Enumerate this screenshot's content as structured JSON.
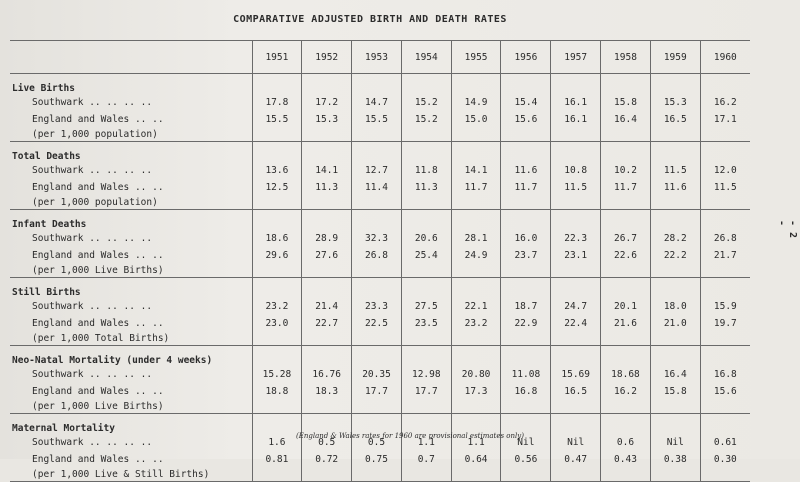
{
  "title": "COMPARATIVE ADJUSTED BIRTH AND DEATH RATES",
  "years": [
    "1951",
    "1952",
    "1953",
    "1954",
    "1955",
    "1956",
    "1957",
    "1958",
    "1959",
    "1960"
  ],
  "groups": [
    {
      "heading": "Live Births",
      "rows": [
        {
          "label": "Southwark .. .. .. ..",
          "values": [
            "17.8",
            "17.2",
            "14.7",
            "15.2",
            "14.9",
            "15.4",
            "16.1",
            "15.8",
            "15.3",
            "16.2"
          ]
        },
        {
          "label": "England and Wales .. ..",
          "values": [
            "15.5",
            "15.3",
            "15.5",
            "15.2",
            "15.0",
            "15.6",
            "16.1",
            "16.4",
            "16.5",
            "17.1"
          ]
        }
      ],
      "note": "(per 1,000 population)"
    },
    {
      "heading": "Total Deaths",
      "rows": [
        {
          "label": "Southwark .. .. .. ..",
          "values": [
            "13.6",
            "14.1",
            "12.7",
            "11.8",
            "14.1",
            "11.6",
            "10.8",
            "10.2",
            "11.5",
            "12.0"
          ]
        },
        {
          "label": "England and Wales .. ..",
          "values": [
            "12.5",
            "11.3",
            "11.4",
            "11.3",
            "11.7",
            "11.7",
            "11.5",
            "11.7",
            "11.6",
            "11.5"
          ]
        }
      ],
      "note": "(per 1,000 population)"
    },
    {
      "heading": "Infant Deaths",
      "rows": [
        {
          "label": "Southwark .. .. .. ..",
          "values": [
            "18.6",
            "28.9",
            "32.3",
            "20.6",
            "28.1",
            "16.0",
            "22.3",
            "26.7",
            "28.2",
            "26.8"
          ]
        },
        {
          "label": "England and Wales .. ..",
          "values": [
            "29.6",
            "27.6",
            "26.8",
            "25.4",
            "24.9",
            "23.7",
            "23.1",
            "22.6",
            "22.2",
            "21.7"
          ]
        }
      ],
      "note": "(per 1,000 Live Births)"
    },
    {
      "heading": "Still Births",
      "rows": [
        {
          "label": "Southwark .. .. .. ..",
          "values": [
            "23.2",
            "21.4",
            "23.3",
            "27.5",
            "22.1",
            "18.7",
            "24.7",
            "20.1",
            "18.0",
            "15.9"
          ]
        },
        {
          "label": "England and Wales .. ..",
          "values": [
            "23.0",
            "22.7",
            "22.5",
            "23.5",
            "23.2",
            "22.9",
            "22.4",
            "21.6",
            "21.0",
            "19.7"
          ]
        }
      ],
      "note": "(per 1,000 Total Births)"
    },
    {
      "heading": "Neo-Natal Mortality (under 4 weeks)",
      "rows": [
        {
          "label": "Southwark .. .. .. ..",
          "values": [
            "15.28",
            "16.76",
            "20.35",
            "12.98",
            "20.80",
            "11.08",
            "15.69",
            "18.68",
            "16.4",
            "16.8"
          ]
        },
        {
          "label": "England and Wales .. ..",
          "values": [
            "18.8",
            "18.3",
            "17.7",
            "17.7",
            "17.3",
            "16.8",
            "16.5",
            "16.2",
            "15.8",
            "15.6"
          ]
        }
      ],
      "note": "(per 1,000 Live Births)"
    },
    {
      "heading": "Maternal Mortality",
      "rows": [
        {
          "label": "Southwark .. .. .. ..",
          "values": [
            "1.6",
            "0.5",
            "0.5",
            "1.1",
            "1.1",
            "Nil",
            "Nil",
            "0.6",
            "Nil",
            "0.61"
          ]
        },
        {
          "label": "England and Wales .. ..",
          "values": [
            "0.81",
            "0.72",
            "0.75",
            "0.7",
            "0.64",
            "0.56",
            "0.47",
            "0.43",
            "0.38",
            "0.30"
          ]
        }
      ],
      "note": "(per 1,000 Live & Still Births)"
    }
  ],
  "footnote": "(England & Wales rates for 1960 are provisional estimates only)",
  "page_number": "- 2 -"
}
